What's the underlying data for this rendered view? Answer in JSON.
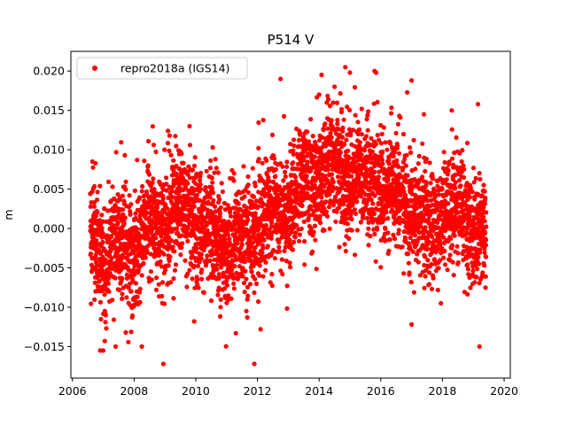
{
  "chart_data": {
    "type": "scatter",
    "title": "P514 V",
    "xlabel": "",
    "ylabel": "m",
    "xlim": [
      2005.95,
      2020.2
    ],
    "ylim": [
      -0.019,
      0.0225
    ],
    "xticks": [
      2006,
      2008,
      2010,
      2012,
      2014,
      2016,
      2018,
      2020
    ],
    "xtick_labels": [
      "2006",
      "2008",
      "2010",
      "2012",
      "2014",
      "2016",
      "2018",
      "2020"
    ],
    "yticks": [
      -0.015,
      -0.01,
      -0.005,
      0.0,
      0.005,
      0.01,
      0.015,
      0.02
    ],
    "ytick_labels": [
      "−0.015",
      "−0.010",
      "−0.005",
      "0.000",
      "0.005",
      "0.010",
      "0.015",
      "0.020"
    ],
    "grid": false,
    "legend": {
      "position": "top-left"
    },
    "series": [
      {
        "name": "repro2018a (IGS14)",
        "color": "#ff0000",
        "marker": "circle",
        "x_range": [
          2006.58,
          2019.42
        ],
        "trend": [
          [
            2006.6,
            -0.002
          ],
          [
            2007.0,
            -0.003
          ],
          [
            2007.5,
            -0.002
          ],
          [
            2008.0,
            -0.003
          ],
          [
            2008.5,
            0.0005
          ],
          [
            2009.0,
            0.001
          ],
          [
            2009.5,
            0.002
          ],
          [
            2010.0,
            0.001
          ],
          [
            2010.5,
            -0.001
          ],
          [
            2011.0,
            -0.002
          ],
          [
            2011.5,
            -0.002
          ],
          [
            2012.0,
            0.001
          ],
          [
            2012.5,
            0.002
          ],
          [
            2013.0,
            0.003
          ],
          [
            2013.5,
            0.005
          ],
          [
            2014.0,
            0.007
          ],
          [
            2014.5,
            0.0075
          ],
          [
            2015.0,
            0.007
          ],
          [
            2015.5,
            0.006
          ],
          [
            2016.0,
            0.006
          ],
          [
            2016.5,
            0.004
          ],
          [
            2017.0,
            0.003
          ],
          [
            2017.5,
            -0.001
          ],
          [
            2018.0,
            0.002
          ],
          [
            2018.5,
            0.002
          ],
          [
            2019.0,
            0.001
          ],
          [
            2019.4,
            -0.002
          ]
        ],
        "scatter_sd": 0.0035,
        "outliers": [
          [
            2006.65,
            0.0085
          ],
          [
            2006.75,
            0.0083
          ],
          [
            2006.9,
            -0.0155
          ],
          [
            2007.0,
            -0.0155
          ],
          [
            2007.05,
            -0.0143
          ],
          [
            2007.4,
            -0.015
          ],
          [
            2007.7,
            0.0093
          ],
          [
            2008.1,
            0.0087
          ],
          [
            2008.25,
            -0.015
          ],
          [
            2008.95,
            -0.0172
          ],
          [
            2009.1,
            0.0124
          ],
          [
            2009.15,
            0.0118
          ],
          [
            2009.8,
            0.013
          ],
          [
            2009.95,
            -0.0118
          ],
          [
            2010.55,
            0.0103
          ],
          [
            2011.3,
            -0.0133
          ],
          [
            2011.9,
            -0.0172
          ],
          [
            2012.1,
            -0.0128
          ],
          [
            2012.75,
            0.019
          ],
          [
            2013.5,
            0.0105
          ],
          [
            2014.0,
            0.017
          ],
          [
            2014.5,
            0.018
          ],
          [
            2014.85,
            0.0205
          ],
          [
            2015.0,
            0.0198
          ],
          [
            2015.8,
            0.02
          ],
          [
            2015.85,
            0.0198
          ],
          [
            2016.6,
            0.0143
          ],
          [
            2017.0,
            0.0188
          ],
          [
            2017.0,
            -0.0122
          ],
          [
            2017.4,
            0.0145
          ],
          [
            2017.95,
            -0.0095
          ],
          [
            2018.3,
            0.015
          ],
          [
            2019.15,
            0.0158
          ],
          [
            2019.2,
            -0.015
          ]
        ]
      }
    ]
  }
}
